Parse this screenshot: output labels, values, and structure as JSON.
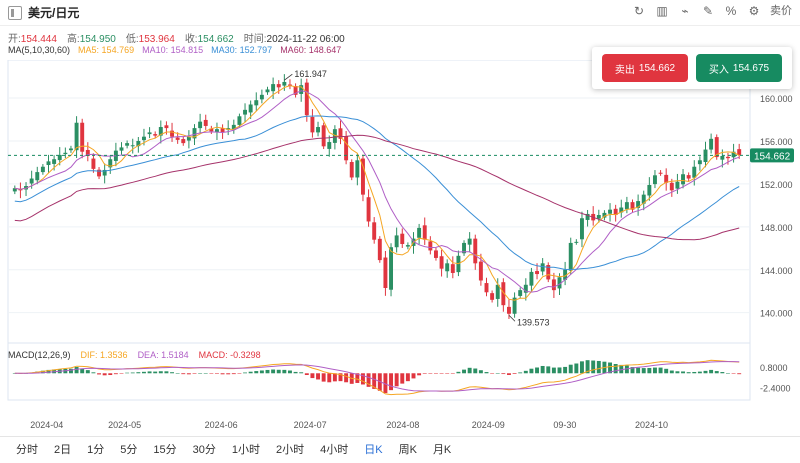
{
  "header": {
    "title": "美元/日元",
    "tools": [
      {
        "icon": "refresh-icon",
        "glyph": "↻"
      },
      {
        "icon": "kline-style-icon",
        "glyph": "▥"
      },
      {
        "icon": "indicator-icon",
        "glyph": "⌁"
      },
      {
        "icon": "draw-tool-icon",
        "glyph": "✎"
      },
      {
        "icon": "percent-icon",
        "glyph": "%"
      },
      {
        "icon": "settings-icon",
        "glyph": "⚙"
      }
    ],
    "sell_toggle": "卖价"
  },
  "quote": {
    "open_label": "开:",
    "open": "154.444",
    "high_label": "高:",
    "high": "154.950",
    "low_label": "低:",
    "low": "153.964",
    "close_label": "收:",
    "close": "154.662",
    "time_label": "时间:",
    "time": "2024-11-22 06:00"
  },
  "ma": {
    "label": "MA(5,10,30,60)",
    "ma5": "MA5: 154.769",
    "ma10": "MA10: 154.815",
    "ma30": "MA30: 152.797",
    "ma60": "MA60: 148.647",
    "colors": {
      "ma5": "#f5a623",
      "ma10": "#b05fc6",
      "ma30": "#3a8fd6",
      "ma60": "#a6336b"
    }
  },
  "trade": {
    "sell_label": "卖出",
    "sell_price": "154.662",
    "buy_label": "买入",
    "buy_price": "154.675"
  },
  "macd": {
    "label": "MACD(12,26,9)",
    "dif": "DIF: 1.3536",
    "dea": "DEA: 1.5184",
    "macd": "MACD: -0.3298"
  },
  "periods": [
    "分时",
    "2日",
    "1分",
    "5分",
    "15分",
    "30分",
    "1小时",
    "2小时",
    "4小时",
    "日K",
    "周K",
    "月K"
  ],
  "active_period": "日K",
  "chart_data": {
    "type": "candlestick",
    "price_axis": {
      "ticks": [
        140.0,
        144.0,
        148.0,
        152.0,
        156.0,
        160.0
      ],
      "range": [
        138.2,
        162.8
      ]
    },
    "macd_axis": {
      "ticks": [
        0.8,
        -2.4
      ]
    },
    "x_labels": [
      "2024-04",
      "2024-05",
      "2024-06",
      "2024-07",
      "2024-08",
      "2024-09",
      "09-30",
      "2024-10"
    ],
    "current_price": "154.662",
    "high_mark": "161.947",
    "low_mark": "139.573",
    "close_series": [
      151.6,
      151.4,
      151.8,
      152.5,
      153.1,
      153.6,
      154.1,
      154.3,
      154.7,
      154.9,
      155.3,
      157.7,
      155.0,
      154.6,
      153.4,
      152.7,
      153.3,
      154.3,
      155.1,
      155.4,
      155.8,
      155.6,
      156.0,
      156.4,
      156.8,
      156.5,
      157.3,
      157.2,
      156.4,
      156.1,
      155.8,
      156.4,
      157.2,
      157.8,
      157.4,
      156.9,
      157.1,
      156.8,
      157.2,
      157.5,
      158.3,
      158.9,
      159.4,
      159.8,
      160.3,
      160.8,
      161.3,
      161.0,
      161.5,
      161.2,
      160.3,
      161.2,
      158.4,
      156.8,
      157.3,
      155.5,
      155.9,
      157.1,
      156.2,
      154.2,
      152.6,
      154.2,
      151.0,
      148.5,
      146.8,
      144.9,
      142.3,
      146.1,
      147.2,
      146.4,
      146.3,
      146.9,
      147.9,
      146.8,
      145.8,
      145.1,
      144.1,
      144.6,
      143.7,
      145.3,
      146.5,
      146.9,
      144.6,
      143.0,
      141.9,
      141.2,
      142.6,
      140.7,
      139.9,
      141.4,
      142.1,
      142.6,
      143.8,
      143.6,
      144.6,
      143.1,
      142.1,
      143.3,
      144.0,
      146.5,
      146.6,
      148.8,
      149.2,
      148.6,
      149.1,
      149.3,
      149.6,
      149.1,
      149.8,
      150.3,
      149.6,
      150.4,
      151.0,
      151.9,
      152.8,
      153.0,
      152.1,
      151.4,
      152.2,
      152.9,
      152.5,
      153.6,
      154.2,
      155.2,
      156.2,
      154.5,
      154.6,
      154.4,
      155.0,
      154.7
    ]
  }
}
